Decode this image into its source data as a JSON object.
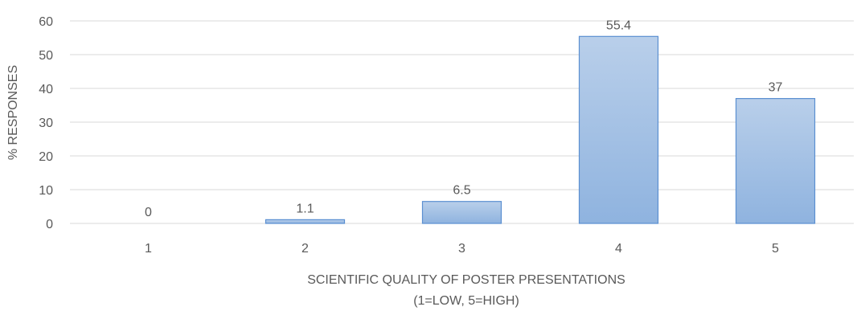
{
  "chart_data": {
    "type": "bar",
    "categories": [
      "1",
      "2",
      "3",
      "4",
      "5"
    ],
    "values": [
      0,
      1.1,
      6.5,
      55.4,
      37
    ],
    "data_labels": [
      "0",
      "1.1",
      "6.5",
      "55.4",
      "37"
    ],
    "xlabel_lines": [
      "SCIENTIFIC QUALITY OF POSTER PRESENTATIONS",
      "(1=LOW, 5=HIGH)"
    ],
    "ylabel": "% RESPONSES",
    "ylim": [
      0,
      60
    ],
    "yticks": [
      0,
      10,
      20,
      30,
      40,
      50,
      60
    ],
    "grid": true,
    "legend": "none",
    "colors": {
      "bar_top": "#b9cfea",
      "bar_bottom": "#8fb3df",
      "bar_stroke": "#5b8fd1",
      "grid": "#d9d9d9",
      "text": "#595959"
    }
  }
}
